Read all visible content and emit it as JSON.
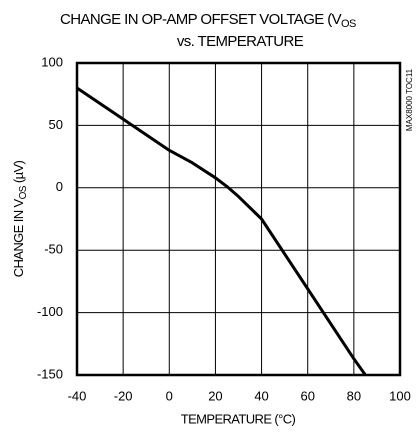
{
  "chart_data": {
    "type": "line",
    "title": [
      "CHANGE IN OP-AMP OFFSET VOLTAGE (V",
      "OS"
    ],
    "subtitle": "vs. TEMPERATURE",
    "xlabel": "TEMPERATURE (°C)",
    "ylabel": [
      "CHANGE IN V",
      "OS",
      " (µV)"
    ],
    "note": "MAX8000 TOC11",
    "x": [
      -40,
      -20,
      0,
      10,
      20,
      25,
      30,
      40,
      60,
      80,
      85
    ],
    "values": [
      80,
      55,
      30,
      20,
      8,
      1,
      -7,
      -25,
      -81,
      -137,
      -150
    ],
    "color": "#000000",
    "xlim": [
      -40,
      100
    ],
    "xticks": [
      -40,
      -20,
      0,
      20,
      40,
      60,
      80,
      100
    ],
    "ylim": [
      -150,
      100
    ],
    "yticks": [
      -150,
      -100,
      -50,
      0,
      50,
      100
    ],
    "grid": true
  }
}
